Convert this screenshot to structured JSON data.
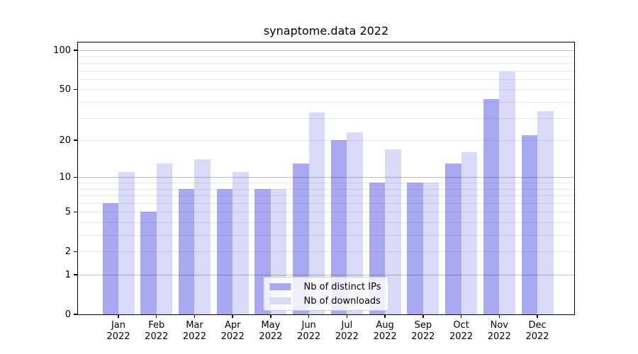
{
  "chart_data": {
    "type": "bar",
    "title": "synaptome.data 2022",
    "categories": [
      "Jan 2022",
      "Feb 2022",
      "Mar 2022",
      "Apr 2022",
      "May 2022",
      "Jun 2022",
      "Jul 2022",
      "Aug 2022",
      "Sep 2022",
      "Oct 2022",
      "Nov 2022",
      "Dec 2022"
    ],
    "series": [
      {
        "name": "Nb of distinct IPs",
        "color": "#a9a9f1",
        "values": [
          6,
          5,
          8,
          8,
          8,
          13,
          20,
          9,
          9,
          13,
          42,
          22
        ]
      },
      {
        "name": "Nb of downloads",
        "color": "#d9d9f8",
        "values": [
          11,
          13,
          14,
          11,
          8,
          33,
          23,
          17,
          9,
          16,
          69,
          34
        ]
      }
    ],
    "y_axis": {
      "scale": "log(1+x)",
      "ticks": [
        0,
        1,
        2,
        5,
        10,
        20,
        50,
        100
      ],
      "max_value": 115,
      "major_gridlines": [
        1,
        10,
        100
      ],
      "minor_gridlines": [
        2,
        3,
        4,
        5,
        6,
        7,
        8,
        9,
        20,
        30,
        40,
        50,
        60,
        70,
        80,
        90
      ]
    },
    "x_axis": {
      "year_line": "2022"
    },
    "legend": {
      "position": "lower center"
    },
    "grid": true,
    "background": "#ffffff"
  }
}
